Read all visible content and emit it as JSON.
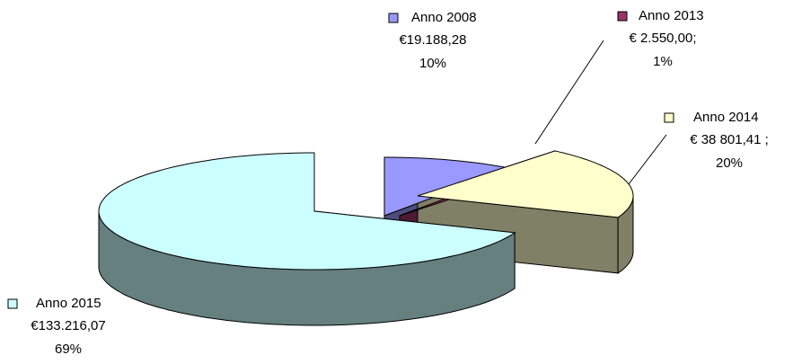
{
  "chart_data": {
    "type": "pie",
    "categories": [
      "Anno 2008",
      "Anno 2013",
      "Anno 2014",
      "Anno 2015"
    ],
    "values": [
      10,
      1,
      20,
      69
    ],
    "value_labels": [
      "10%",
      "1%",
      "20%",
      "69%"
    ],
    "amounts": [
      {
        "value": 19188.28,
        "label": "€19.188,28"
      },
      {
        "value": 2550.0,
        "label": "€ 2.550,00;"
      },
      {
        "value": 38801.41,
        "label": "€ 38 801,41 ;"
      },
      {
        "value": 133216.07,
        "label": "€133.216,07"
      }
    ],
    "colors": [
      "#9999ff",
      "#993366",
      "#ffffcc",
      "#ccffff"
    ]
  }
}
